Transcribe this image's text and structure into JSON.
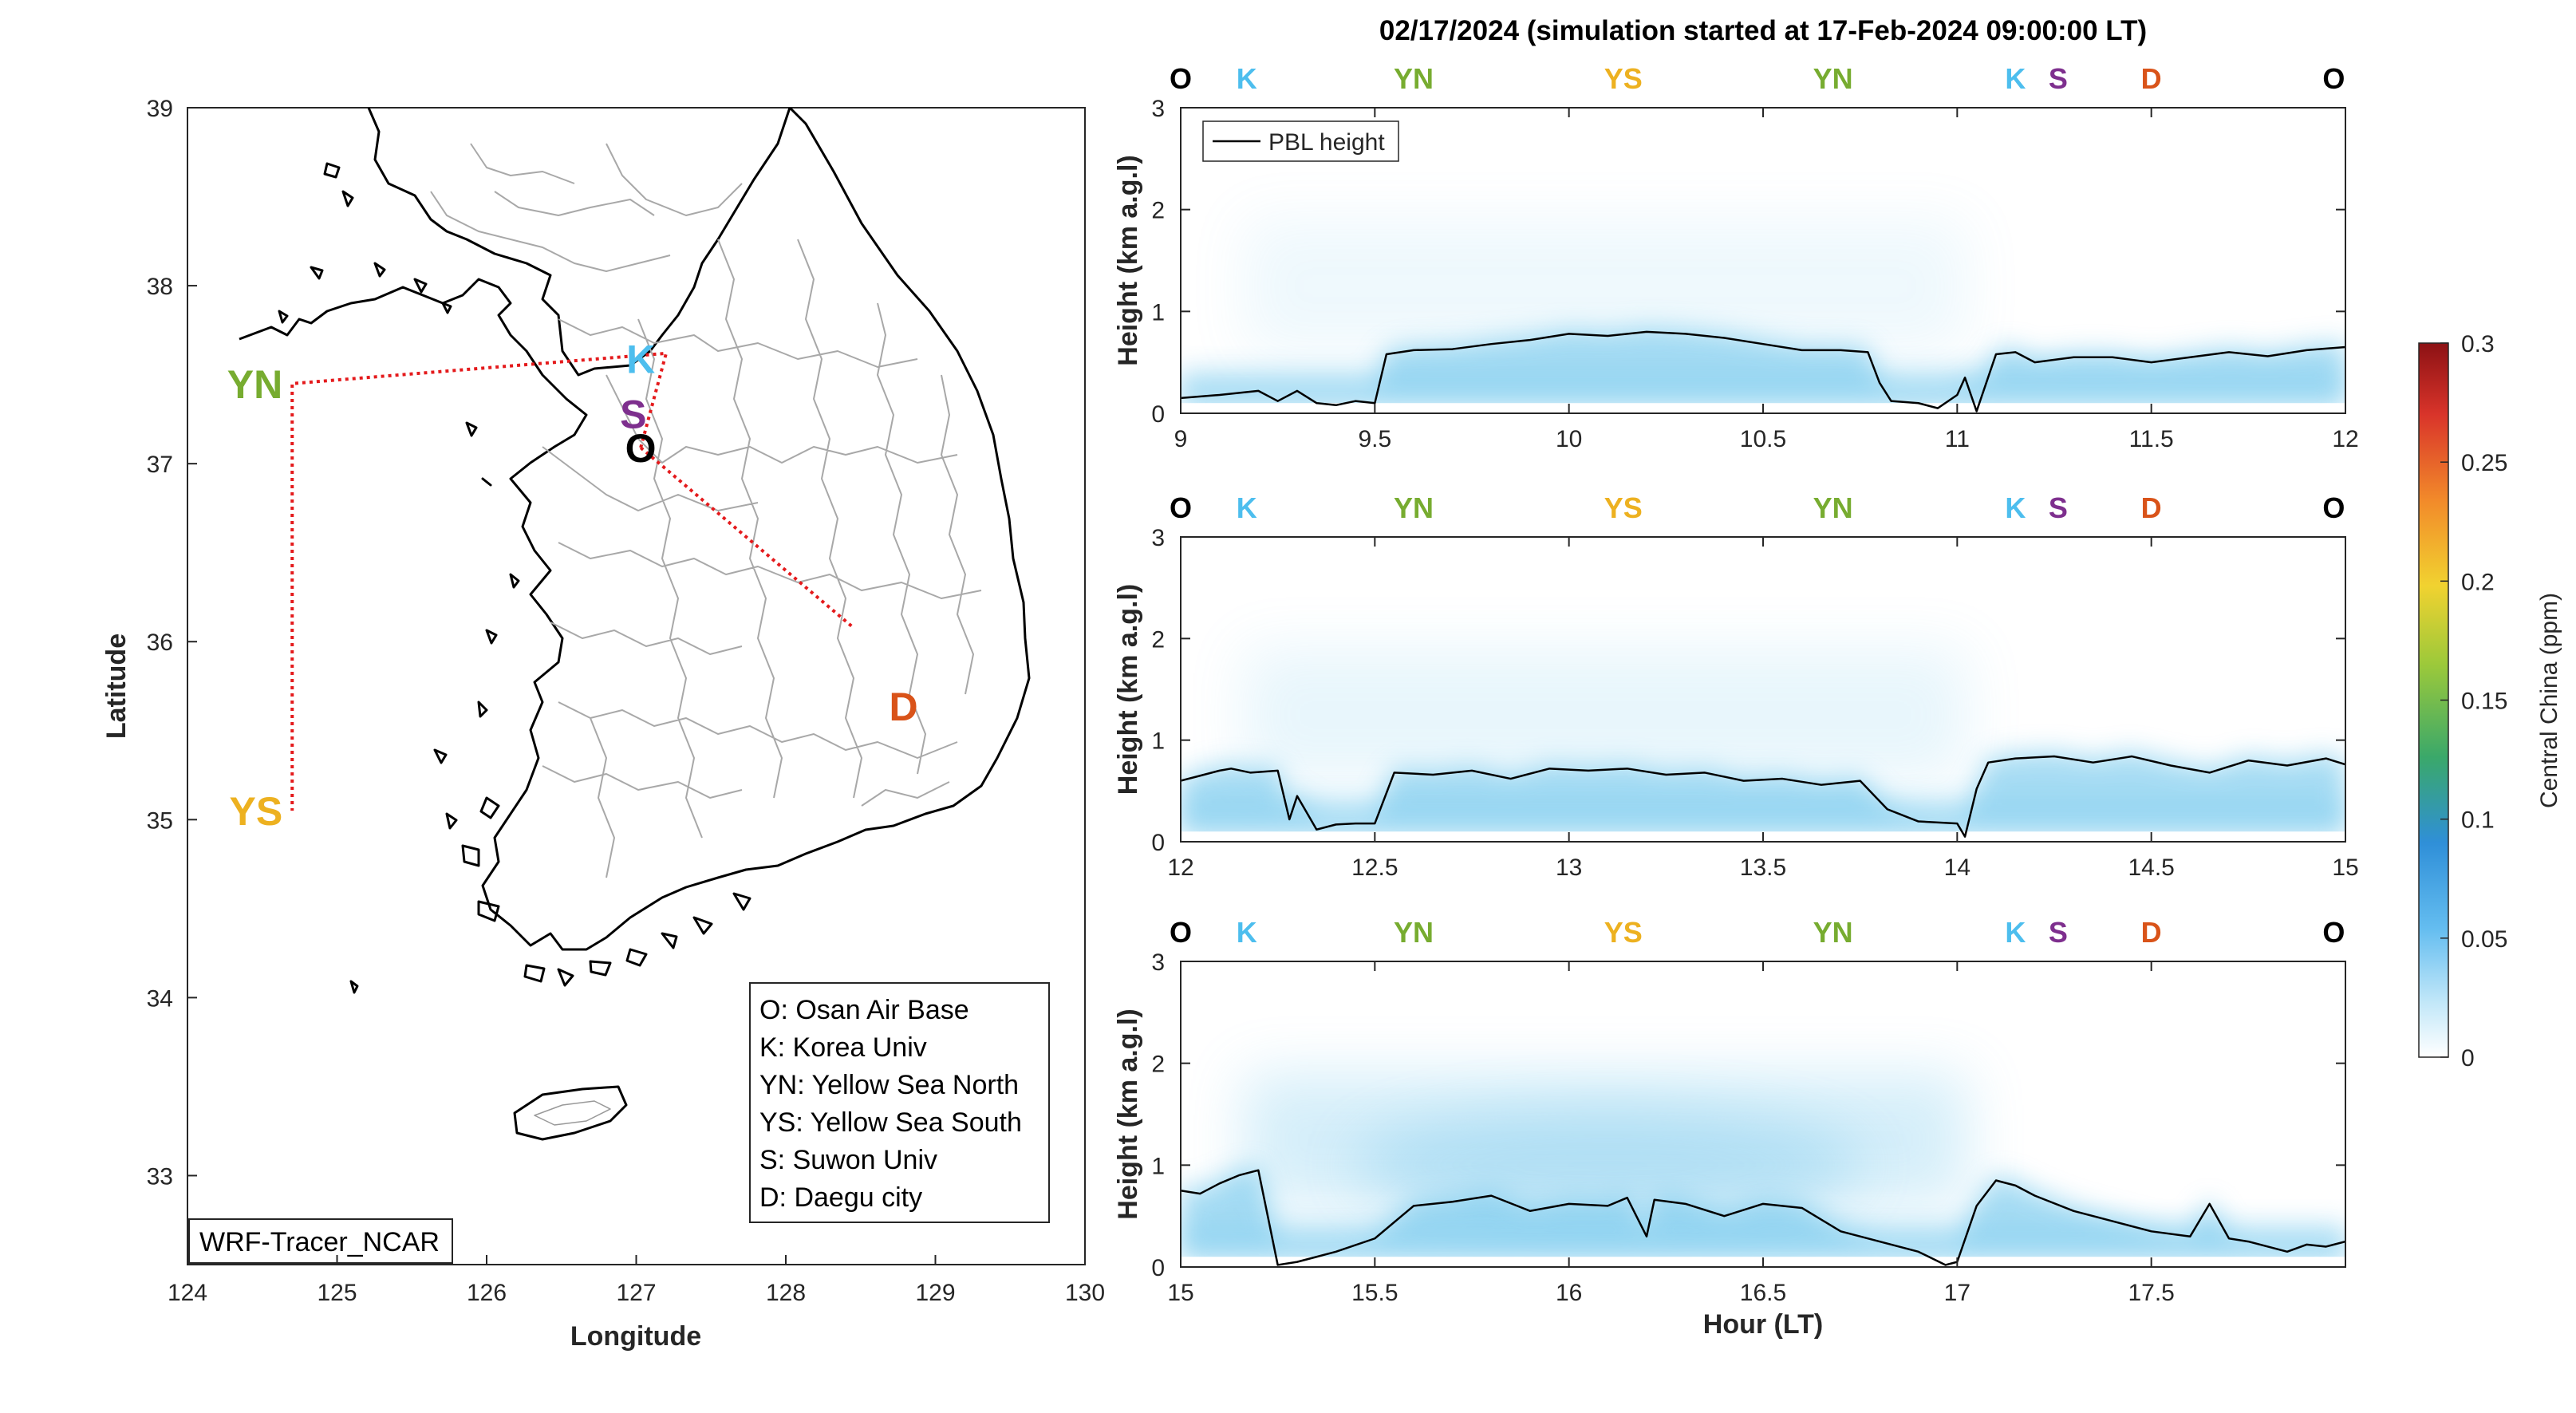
{
  "figure_title": "02/17/2024 (simulation started at 17-Feb-2024 09:00:00 LT)",
  "colors": {
    "O": "#000000",
    "K": "#4DBEEE",
    "YN": "#77AC30",
    "YS": "#EDB120",
    "S": "#7E2F8E",
    "D": "#D95319",
    "route": "#E41A1C",
    "plume": "#5FC0EA"
  },
  "map": {
    "xlabel": "Longitude",
    "ylabel": "Latitude",
    "xlim": [
      124,
      130
    ],
    "ylim": [
      32.5,
      39
    ],
    "xticks": [
      "124",
      "125",
      "126",
      "127",
      "128",
      "129",
      "130"
    ],
    "yticks": [
      "33",
      "34",
      "35",
      "36",
      "37",
      "38",
      "39"
    ],
    "model_label": "WRF-Tracer_NCAR",
    "legend": [
      "O: Osan Air Base",
      "K: Korea Univ",
      "YN: Yellow Sea North",
      "YS: Yellow Sea South",
      "S: Suwon Univ",
      "D: Daegu city"
    ],
    "sites": [
      {
        "key": "YN",
        "label": "YN",
        "lon": 124.7,
        "lat": 37.45
      },
      {
        "key": "YS",
        "label": "YS",
        "lon": 124.7,
        "lat": 35.05
      },
      {
        "key": "K",
        "label": "K",
        "lon": 127.03,
        "lat": 37.59
      },
      {
        "key": "S",
        "label": "S",
        "lon": 126.98,
        "lat": 37.28
      },
      {
        "key": "O",
        "label": "O",
        "lon": 127.03,
        "lat": 37.09
      },
      {
        "key": "D",
        "label": "D",
        "lon": 128.6,
        "lat": 35.87
      }
    ],
    "route": [
      [
        127.03,
        37.09
      ],
      [
        127.2,
        37.62
      ],
      [
        124.7,
        37.45
      ],
      [
        124.7,
        35.05
      ]
    ],
    "route2": [
      [
        127.03,
        37.09
      ],
      [
        128.45,
        36.08
      ]
    ],
    "icon": "korea-peninsula-outline"
  },
  "colorbar": {
    "label": "Central China (ppm)",
    "ticks": [
      "0",
      "0.05",
      "0.1",
      "0.15",
      "0.2",
      "0.25",
      "0.3"
    ],
    "range": [
      0,
      0.3
    ]
  },
  "chart_data": [
    {
      "type": "line",
      "ylabel": "Height (km a.g.l)",
      "xlabel": "",
      "xlim": [
        9,
        12
      ],
      "ylim": [
        0,
        3
      ],
      "xticks": [
        "9",
        "9.5",
        "10",
        "10.5",
        "11",
        "11.5",
        "12"
      ],
      "yticks": [
        "0",
        "1",
        "2",
        "3"
      ],
      "site_labels": [
        {
          "label": "O",
          "key": "O",
          "x": 9.0
        },
        {
          "label": "K",
          "key": "K",
          "x": 9.17
        },
        {
          "label": "YN",
          "key": "YN",
          "x": 9.6
        },
        {
          "label": "YS",
          "key": "YS",
          "x": 10.14
        },
        {
          "label": "YN",
          "key": "YN",
          "x": 10.68
        },
        {
          "label": "K",
          "key": "K",
          "x": 11.15
        },
        {
          "label": "S",
          "key": "S",
          "x": 11.26
        },
        {
          "label": "D",
          "key": "D",
          "x": 11.5
        },
        {
          "label": "O",
          "key": "O",
          "x": 11.97
        }
      ],
      "legend": [
        "PBL height"
      ],
      "series": [
        {
          "name": "PBL height",
          "x": [
            9.0,
            9.1,
            9.2,
            9.25,
            9.3,
            9.35,
            9.4,
            9.45,
            9.5,
            9.53,
            9.6,
            9.7,
            9.8,
            9.9,
            10.0,
            10.1,
            10.2,
            10.3,
            10.4,
            10.5,
            10.6,
            10.7,
            10.77,
            10.8,
            10.83,
            10.9,
            10.95,
            11.0,
            11.02,
            11.05,
            11.1,
            11.15,
            11.2,
            11.3,
            11.4,
            11.5,
            11.6,
            11.7,
            11.8,
            11.9,
            12.0
          ],
          "y": [
            0.15,
            0.18,
            0.22,
            0.12,
            0.22,
            0.1,
            0.08,
            0.12,
            0.1,
            0.58,
            0.62,
            0.63,
            0.68,
            0.72,
            0.78,
            0.76,
            0.8,
            0.78,
            0.74,
            0.68,
            0.62,
            0.62,
            0.6,
            0.3,
            0.12,
            0.1,
            0.05,
            0.18,
            0.35,
            0.02,
            0.58,
            0.6,
            0.5,
            0.55,
            0.55,
            0.5,
            0.55,
            0.6,
            0.56,
            0.62,
            0.65
          ]
        }
      ]
    },
    {
      "type": "line",
      "ylabel": "Height (km a.g.l)",
      "xlabel": "",
      "xlim": [
        12,
        15
      ],
      "ylim": [
        0,
        3
      ],
      "xticks": [
        "12",
        "12.5",
        "13",
        "13.5",
        "14",
        "14.5",
        "15"
      ],
      "yticks": [
        "0",
        "1",
        "2",
        "3"
      ],
      "site_labels": [
        {
          "label": "O",
          "key": "O",
          "x": 12.0
        },
        {
          "label": "K",
          "key": "K",
          "x": 12.17
        },
        {
          "label": "YN",
          "key": "YN",
          "x": 12.6
        },
        {
          "label": "YS",
          "key": "YS",
          "x": 13.14
        },
        {
          "label": "YN",
          "key": "YN",
          "x": 13.68
        },
        {
          "label": "K",
          "key": "K",
          "x": 14.15
        },
        {
          "label": "S",
          "key": "S",
          "x": 14.26
        },
        {
          "label": "D",
          "key": "D",
          "x": 14.5
        },
        {
          "label": "O",
          "key": "O",
          "x": 14.97
        }
      ],
      "legend": [],
      "series": [
        {
          "name": "PBL height",
          "x": [
            12.0,
            12.05,
            12.1,
            12.13,
            12.18,
            12.25,
            12.28,
            12.3,
            12.35,
            12.4,
            12.45,
            12.5,
            12.55,
            12.65,
            12.75,
            12.85,
            12.95,
            13.05,
            13.15,
            13.25,
            13.35,
            13.45,
            13.55,
            13.65,
            13.75,
            13.82,
            13.9,
            14.0,
            14.02,
            14.05,
            14.08,
            14.15,
            14.25,
            14.35,
            14.45,
            14.55,
            14.65,
            14.75,
            14.85,
            14.95,
            15.0
          ],
          "y": [
            0.6,
            0.65,
            0.7,
            0.72,
            0.68,
            0.7,
            0.22,
            0.45,
            0.12,
            0.17,
            0.18,
            0.18,
            0.68,
            0.66,
            0.7,
            0.62,
            0.72,
            0.7,
            0.72,
            0.66,
            0.68,
            0.6,
            0.62,
            0.56,
            0.6,
            0.32,
            0.2,
            0.18,
            0.05,
            0.52,
            0.78,
            0.82,
            0.84,
            0.78,
            0.84,
            0.75,
            0.68,
            0.8,
            0.75,
            0.82,
            0.76
          ]
        }
      ]
    },
    {
      "type": "line",
      "ylabel": "Height (km a.g.l)",
      "xlabel": "Hour (LT)",
      "xlim": [
        15,
        18
      ],
      "ylim": [
        0,
        3
      ],
      "xticks": [
        "15",
        "15.5",
        "16",
        "16.5",
        "17",
        "17.5"
      ],
      "yticks": [
        "0",
        "1",
        "2",
        "3"
      ],
      "site_labels": [
        {
          "label": "O",
          "key": "O",
          "x": 15.0
        },
        {
          "label": "K",
          "key": "K",
          "x": 15.17
        },
        {
          "label": "YN",
          "key": "YN",
          "x": 15.6
        },
        {
          "label": "YS",
          "key": "YS",
          "x": 16.14
        },
        {
          "label": "YN",
          "key": "YN",
          "x": 16.68
        },
        {
          "label": "K",
          "key": "K",
          "x": 17.15
        },
        {
          "label": "S",
          "key": "S",
          "x": 17.26
        },
        {
          "label": "D",
          "key": "D",
          "x": 17.5
        },
        {
          "label": "O",
          "key": "O",
          "x": 17.97
        }
      ],
      "legend": [],
      "series": [
        {
          "name": "PBL height",
          "x": [
            15.0,
            15.05,
            15.1,
            15.15,
            15.2,
            15.25,
            15.3,
            15.35,
            15.4,
            15.5,
            15.6,
            15.7,
            15.8,
            15.9,
            16.0,
            16.1,
            16.15,
            16.2,
            16.22,
            16.3,
            16.4,
            16.5,
            16.6,
            16.7,
            16.8,
            16.9,
            16.97,
            17.0,
            17.05,
            17.1,
            17.15,
            17.2,
            17.3,
            17.4,
            17.5,
            17.6,
            17.65,
            17.7,
            17.75,
            17.8,
            17.85,
            17.9,
            17.95,
            18.0
          ],
          "y": [
            0.75,
            0.72,
            0.82,
            0.9,
            0.95,
            0.02,
            0.05,
            0.1,
            0.15,
            0.28,
            0.6,
            0.64,
            0.7,
            0.55,
            0.62,
            0.6,
            0.68,
            0.3,
            0.66,
            0.62,
            0.5,
            0.62,
            0.58,
            0.35,
            0.25,
            0.15,
            0.02,
            0.05,
            0.6,
            0.85,
            0.8,
            0.7,
            0.55,
            0.45,
            0.35,
            0.3,
            0.62,
            0.28,
            0.25,
            0.2,
            0.15,
            0.22,
            0.2,
            0.25
          ]
        }
      ]
    }
  ]
}
